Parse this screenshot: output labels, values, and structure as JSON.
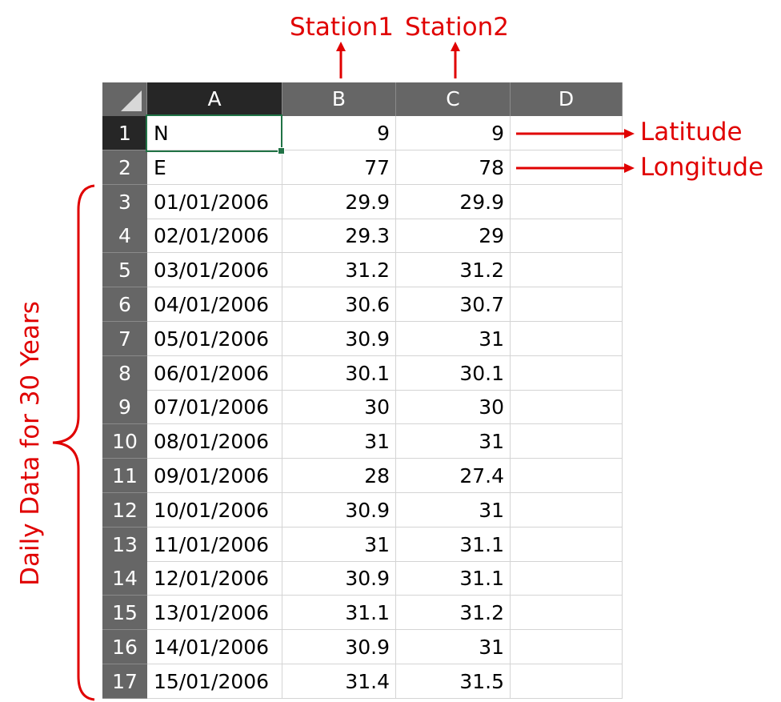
{
  "columns": [
    "A",
    "B",
    "C",
    "D"
  ],
  "selected_column": "A",
  "selected_row": "1",
  "rows": [
    {
      "num": "1",
      "a": "N",
      "b": "9",
      "c": "9"
    },
    {
      "num": "2",
      "a": "E",
      "b": "77",
      "c": "78"
    },
    {
      "num": "3",
      "a": "01/01/2006",
      "b": "29.9",
      "c": "29.9"
    },
    {
      "num": "4",
      "a": "02/01/2006",
      "b": "29.3",
      "c": "29"
    },
    {
      "num": "5",
      "a": "03/01/2006",
      "b": "31.2",
      "c": "31.2"
    },
    {
      "num": "6",
      "a": "04/01/2006",
      "b": "30.6",
      "c": "30.7"
    },
    {
      "num": "7",
      "a": "05/01/2006",
      "b": "30.9",
      "c": "31"
    },
    {
      "num": "8",
      "a": "06/01/2006",
      "b": "30.1",
      "c": "30.1"
    },
    {
      "num": "9",
      "a": "07/01/2006",
      "b": "30",
      "c": "30"
    },
    {
      "num": "10",
      "a": "08/01/2006",
      "b": "31",
      "c": "31"
    },
    {
      "num": "11",
      "a": "09/01/2006",
      "b": "28",
      "c": "27.4"
    },
    {
      "num": "12",
      "a": "10/01/2006",
      "b": "30.9",
      "c": "31"
    },
    {
      "num": "13",
      "a": "11/01/2006",
      "b": "31",
      "c": "31.1"
    },
    {
      "num": "14",
      "a": "12/01/2006",
      "b": "30.9",
      "c": "31.1"
    },
    {
      "num": "15",
      "a": "13/01/2006",
      "b": "31.1",
      "c": "31.2"
    },
    {
      "num": "16",
      "a": "14/01/2006",
      "b": "30.9",
      "c": "31"
    },
    {
      "num": "17",
      "a": "15/01/2006",
      "b": "31.4",
      "c": "31.5"
    }
  ],
  "annotations": {
    "station1": "Station1",
    "station2": "Station2",
    "latitude": "Latitude",
    "longitude": "Longitude",
    "daily": "Daily Data for 30 Years",
    "color": "#e00000"
  },
  "colors": {
    "header_bg": "#666666",
    "header_selected_bg": "#262626",
    "active_cell_border": "#217346",
    "gridline": "#d4d4d4"
  }
}
